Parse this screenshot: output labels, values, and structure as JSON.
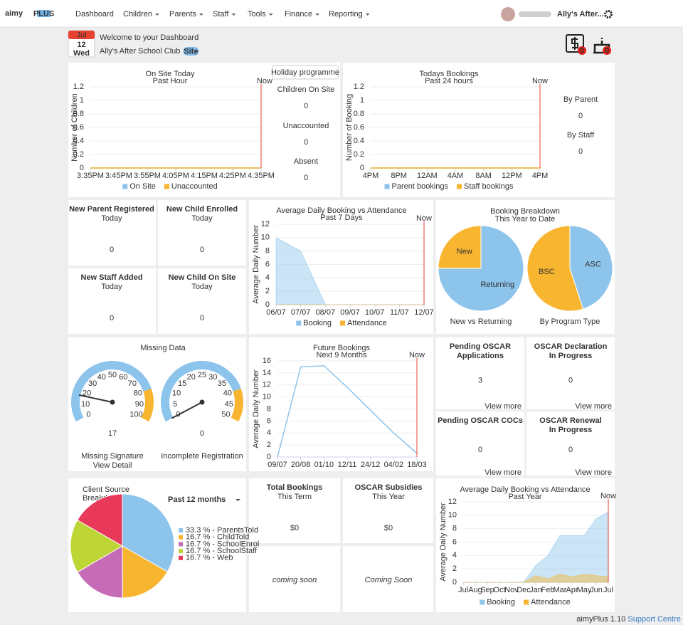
{
  "nav": {
    "brand": "aimy",
    "brand_badge": "PLUS",
    "items": [
      "Dashboard",
      "Children",
      "Parents",
      "Staff",
      "Tools",
      "Finance",
      "Reporting"
    ],
    "user": "Ally's After..."
  },
  "header": {
    "month": "Jul",
    "day": "12",
    "weekday": "Wed",
    "title": "Welcome to your Dashboard",
    "club": "Ally's After School Club",
    "badge": "Site",
    "alerts": [
      0,
      0
    ]
  },
  "on_site": {
    "button": "Holiday programme",
    "chart": {
      "type": "line",
      "title": "On Site Today",
      "subtitle": "Past Hour",
      "y_label": "Number of Children",
      "categories": [
        "3:35PM",
        "3:45PM",
        "3:55PM",
        "4:05PM",
        "4:15PM",
        "4:25PM",
        "4:35PM"
      ],
      "ylim": [
        0,
        1.2
      ],
      "yticks": [
        0,
        0.2,
        0.4,
        0.6,
        0.8,
        1,
        1.2
      ],
      "now_label": "Now",
      "series": [
        {
          "name": "On Site",
          "color": "#8cc4ec",
          "values": [
            0,
            0,
            0,
            0,
            0,
            0,
            0
          ]
        },
        {
          "name": "Unaccounted",
          "color": "#f8b530",
          "values": [
            0,
            0,
            0,
            0,
            0,
            0,
            0
          ]
        }
      ]
    },
    "stats": [
      {
        "label": "Children On Site",
        "value": 0,
        "color": "#8cc4ec"
      },
      {
        "label": "Unaccounted",
        "value": 0,
        "color": "#f8b530"
      },
      {
        "label": "Absent",
        "value": 0,
        "color": "#333333"
      }
    ]
  },
  "bookings": {
    "chart": {
      "type": "line",
      "title": "Todays Bookings",
      "subtitle": "Past 24 hours",
      "y_label": "Number of Booking",
      "categories": [
        "4PM",
        "8PM",
        "12AM",
        "4AM",
        "8AM",
        "12PM",
        "4PM"
      ],
      "ylim": [
        0,
        1.2
      ],
      "yticks": [
        0,
        0.2,
        0.4,
        0.6,
        0.8,
        1,
        1.2
      ],
      "now_label": "Now",
      "series": [
        {
          "name": "Parent bookings",
          "color": "#8cc4ec",
          "values": [
            0,
            0,
            0,
            0,
            0,
            0,
            0
          ]
        },
        {
          "name": "Staff bookings",
          "color": "#f8b530",
          "values": [
            0,
            0,
            0,
            0,
            0,
            0,
            0
          ]
        }
      ]
    },
    "stats": [
      {
        "label": "By Parent",
        "value": 0,
        "color": "#8cc4ec"
      },
      {
        "label": "By Staff",
        "value": 0,
        "color": "#f8b530"
      }
    ]
  },
  "new_tiles": [
    {
      "title": "New Parent Registered",
      "period": "Today",
      "value": 0
    },
    {
      "title": "New Child Enrolled",
      "period": "Today",
      "value": 0
    },
    {
      "title": "New Staff Added",
      "period": "Today",
      "value": 0
    },
    {
      "title": "New Child On Site",
      "period": "Today",
      "value": 0
    }
  ],
  "week_chart": {
    "type": "area",
    "title": "Average Daily Booking vs Attendance",
    "subtitle": "Past 7 Days",
    "y_label": "Average Daily Number",
    "categories": [
      "06/07",
      "07/07",
      "08/07",
      "09/07",
      "10/07",
      "11/07",
      "12/07"
    ],
    "ylim": [
      0,
      12
    ],
    "yticks": [
      0,
      2,
      4,
      6,
      8,
      10,
      12
    ],
    "now_label": "Now",
    "series": [
      {
        "name": "Booking",
        "color": "#8cc4ec",
        "values": [
          10,
          8,
          0,
          0,
          0,
          0,
          0
        ]
      },
      {
        "name": "Attendance",
        "color": "#f8b530",
        "values": [
          0,
          0,
          0,
          0,
          0,
          0,
          0
        ]
      }
    ]
  },
  "breakdown": {
    "title": "Booking Breakdown",
    "subtitle": "This Year to Date",
    "pies": [
      {
        "type": "pie",
        "title": "New vs Returning",
        "categories": [
          "Returning",
          "New"
        ],
        "values": [
          75,
          25
        ],
        "colors": [
          "#8cc4ec",
          "#f8b530"
        ]
      },
      {
        "type": "pie",
        "title": "By Program Type",
        "categories": [
          "ASC",
          "BSC"
        ],
        "values": [
          45,
          55
        ],
        "colors": [
          "#8cc4ec",
          "#f8b530"
        ]
      }
    ]
  },
  "missing": {
    "title": "Missing Data",
    "link": "View Detail",
    "gauges": [
      {
        "type": "gauge",
        "label": "Missing Signature",
        "value": 17,
        "ylim": [
          0,
          100
        ],
        "yticks": [
          0,
          10,
          20,
          30,
          40,
          50,
          60,
          70,
          80,
          90,
          100
        ],
        "band": [
          80,
          100
        ]
      },
      {
        "type": "gauge",
        "label": "Incomplete Registration",
        "value": 0,
        "ylim": [
          0,
          50
        ],
        "yticks": [
          0,
          5,
          10,
          15,
          20,
          25,
          30,
          35,
          40,
          45,
          50
        ],
        "band": [
          40,
          50
        ]
      }
    ]
  },
  "future": {
    "type": "line",
    "title": "Future Bookings",
    "subtitle": "Next 9 Months",
    "y_label": "Average Daily Number",
    "categories": [
      "09/07",
      "20/08",
      "01/10",
      "12/11",
      "24/12",
      "04/02",
      "18/03"
    ],
    "ylim": [
      0,
      16
    ],
    "yticks": [
      0,
      2,
      4,
      6,
      8,
      10,
      12,
      14,
      16
    ],
    "now_label": "Now",
    "series": [
      {
        "color": "#8cc4ec",
        "values": [
          0,
          15,
          15.2,
          11.6,
          7.8,
          4,
          0.6
        ]
      }
    ]
  },
  "oscar_tiles": [
    {
      "title": [
        "Pending OSCAR",
        "Applications"
      ],
      "value": 3,
      "link": "View more"
    },
    {
      "title": [
        "OSCAR Declaration",
        "In Progress"
      ],
      "value": 0,
      "link": "View more"
    },
    {
      "title": [
        "Pending OSCAR COCs"
      ],
      "value": 0,
      "link": "View more"
    },
    {
      "title": [
        "OSCAR Renewal",
        "In Progress"
      ],
      "value": 0,
      "link": "View more"
    }
  ],
  "client": {
    "title": [
      "Client Source",
      "Breakdown"
    ],
    "period": "Past 12 months",
    "chart": {
      "type": "pie",
      "values": [
        33.3,
        16.7,
        16.7,
        16.7,
        16.7
      ],
      "value_labels": [
        "33.3 % - ParentsTold",
        "16.7 % - ChildTold",
        "16.7 % - SchoolEnrol",
        "16.7 % - SchoolStaff",
        "16.7 % - Web"
      ],
      "colors": [
        "#8cc4ec",
        "#f8b530",
        "#c66bb6",
        "#bdd535",
        "#e8395b"
      ]
    }
  },
  "money_tiles": [
    {
      "title": "Total Bookings",
      "period": "This Term",
      "value": "$0",
      "note": "coming soon"
    },
    {
      "title": "OSCAR Subsidies",
      "period": "This Year",
      "value": "$0",
      "note": "Coming Soon"
    }
  ],
  "year_chart": {
    "type": "area",
    "title": "Average Daily Booking vs Attendance",
    "subtitle": "Past Year",
    "y_label": "Average Daily Number",
    "categories": [
      "Jul",
      "Aug",
      "Sep",
      "Oct",
      "Nov",
      "Dec",
      "Jan",
      "Feb",
      "Mar",
      "Apr",
      "May",
      "Jun",
      "Jul"
    ],
    "ylim": [
      0,
      12
    ],
    "yticks": [
      0,
      2,
      4,
      6,
      8,
      10,
      12
    ],
    "now_label": "Now",
    "series": [
      {
        "name": "Booking",
        "color": "#8cc4ec",
        "values": [
          0,
          0,
          0,
          0,
          0,
          0,
          2.5,
          4,
          7,
          7,
          7,
          9.5,
          10.5
        ]
      },
      {
        "name": "Attendance",
        "color": "#f8b530",
        "values": [
          0,
          0,
          0,
          0,
          0,
          0,
          1,
          0.5,
          1.2,
          0.8,
          1.2,
          1,
          0.8
        ]
      }
    ]
  },
  "footer": {
    "version": "aimyPlus 1.10",
    "link": "Support Centre"
  }
}
